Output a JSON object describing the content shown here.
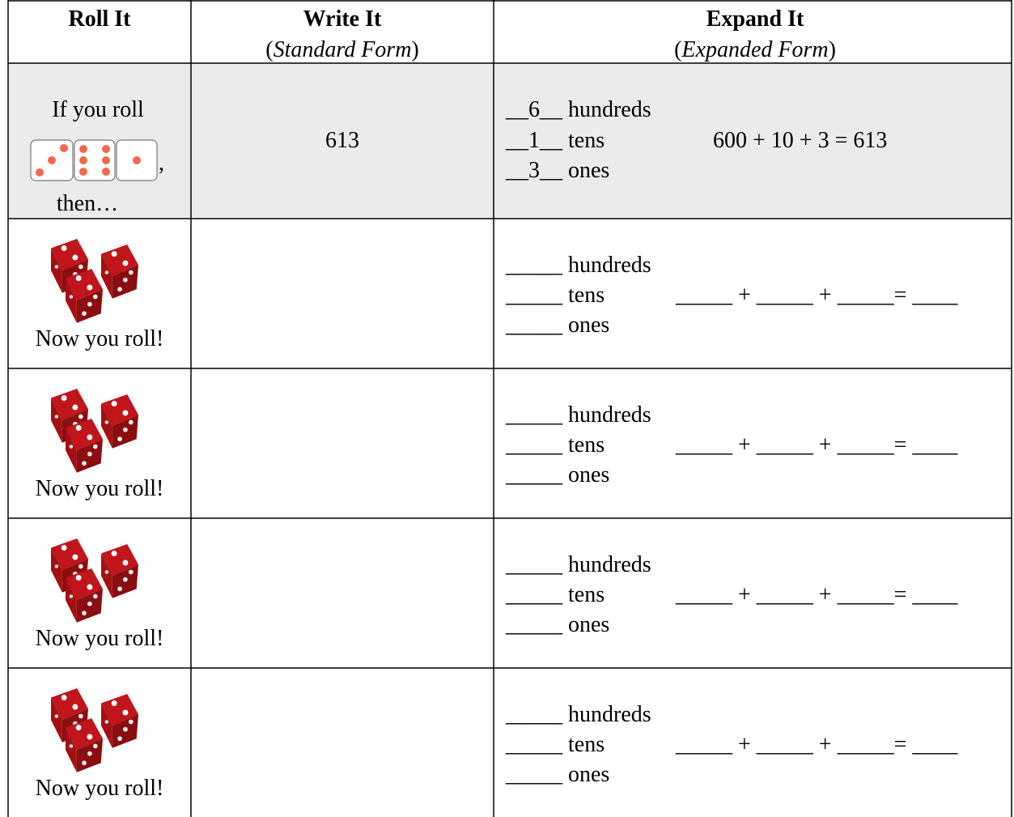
{
  "header": {
    "roll": "Roll It",
    "write": {
      "title": "Write It",
      "subtitle": [
        "(",
        "Standard Form",
        ")"
      ]
    },
    "expand": {
      "title": "Expand It",
      "subtitle": [
        "(",
        "Expanded Form",
        ")"
      ]
    }
  },
  "example": {
    "roll_before": "If you roll",
    "roll_comma": ",",
    "roll_after": "then…",
    "standard": "613",
    "expanded": [
      "__6__ hundreds",
      "__1__ tens",
      "__3__ ones"
    ],
    "equation": "600 + 10 + 3 = 613"
  },
  "practice": [
    {
      "roll": "Now you roll!",
      "expanded": [
        "_____ hundreds",
        "_____ tens",
        "_____ ones"
      ],
      "equation": "_____ + _____ + _____= ____"
    },
    {
      "roll": "Now you roll!",
      "expanded": [
        "_____ hundreds",
        "_____ tens",
        "_____ ones"
      ],
      "equation": "_____ + _____ + _____= ____"
    },
    {
      "roll": "Now you roll!",
      "expanded": [
        "_____ hundreds",
        "_____ tens",
        "_____ ones"
      ],
      "equation": "_____ + _____ + _____= ____"
    },
    {
      "roll": "Now you roll!",
      "expanded": [
        "_____ hundreds",
        "_____ tens",
        "_____ ones"
      ],
      "equation": "_____ + _____ + _____= ____"
    }
  ]
}
